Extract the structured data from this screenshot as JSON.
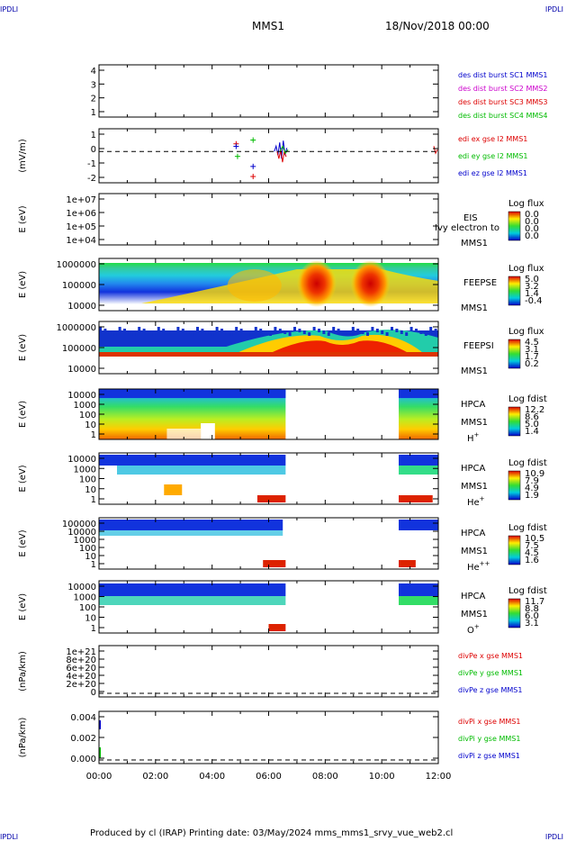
{
  "corner_label": "IPDLI",
  "header": {
    "title": "MMS1",
    "date": "18/Nov/2018 00:00"
  },
  "footer": {
    "text": "Produced by cl (IRAP)   Printing date: 03/May/2024   mms_mms1_srvy_vue_web2.cl"
  },
  "colors": {
    "red": "#dd0000",
    "magenta": "#cc00cc",
    "green": "#00bb00",
    "blue": "#0000cc"
  },
  "chart_data": {
    "type": "spectrogram-stack",
    "x_ticks": [
      "00:00",
      "02:00",
      "04:00",
      "06:00",
      "08:00",
      "10:00",
      "12:00"
    ],
    "x_range_hours": [
      0,
      12
    ],
    "panels": [
      {
        "id": "dist",
        "type": "line",
        "ylabel": "",
        "yticks": [
          "4",
          "3",
          "2",
          "1"
        ],
        "legend": [
          {
            "text": "des dist burst SC1 MMS1",
            "color": "#0000cc"
          },
          {
            "text": "des dist burst SC2 MMS2",
            "color": "#cc00cc"
          },
          {
            "text": "des dist burst SC3 MMS3",
            "color": "#dd0000"
          },
          {
            "text": "des dist burst SC4 MMS4",
            "color": "#00bb00"
          }
        ]
      },
      {
        "id": "edi",
        "type": "line",
        "ylabel": "(mV/m)",
        "yticks": [
          "1",
          "0",
          "-1",
          "-2"
        ],
        "legend": [
          {
            "text": "edi ex gse l2 MMS1",
            "color": "#dd0000"
          },
          {
            "text": "edi ey gse l2 MMS1",
            "color": "#00bb00"
          },
          {
            "text": "edi ez gse l2 MMS1",
            "color": "#0000cc"
          }
        ],
        "points": [
          {
            "t": 4.85,
            "v": 0.5,
            "c": "#dd0000"
          },
          {
            "t": 4.85,
            "v": 0.3,
            "c": "#0000cc"
          },
          {
            "t": 4.9,
            "v": -0.5,
            "c": "#00bb00"
          },
          {
            "t": 5.45,
            "v": 0.8,
            "c": "#00bb00"
          },
          {
            "t": 5.45,
            "v": -1.3,
            "c": "#0000cc"
          },
          {
            "t": 5.45,
            "v": -2.1,
            "c": "#dd0000"
          }
        ]
      },
      {
        "id": "eis",
        "type": "spectrogram",
        "ylabel": "E (eV)",
        "yticks": [
          "1e+07",
          "1e+06",
          "1e+05",
          "1e+04"
        ],
        "name": [
          "EIS",
          "MMS1"
        ],
        "overlay_note": "Ivy electron to",
        "cb_title": "Log flux",
        "cb_ticks": [
          "0.0",
          "0.0",
          "0.0",
          "0.0"
        ]
      },
      {
        "id": "feepse",
        "type": "spectrogram",
        "ylabel": "E (eV)",
        "yticks": [
          "1000000",
          "100000",
          "10000"
        ],
        "name": [
          "FEEPSE",
          "MMS1"
        ],
        "cb_title": "Log flux",
        "cb_ticks": [
          "5.0",
          "3.2",
          "1.4",
          "-0.4"
        ]
      },
      {
        "id": "feepsi",
        "type": "spectrogram",
        "ylabel": "E (eV)",
        "yticks": [
          "1000000",
          "100000",
          "10000"
        ],
        "name": [
          "FEEPSI",
          "MMS1"
        ],
        "cb_title": "Log flux",
        "cb_ticks": [
          "4.5",
          "3.1",
          "1.7",
          "0.2"
        ]
      },
      {
        "id": "hpca_h",
        "type": "spectrogram",
        "ylabel": "E (eV)",
        "yticks": [
          "10000",
          "1000",
          "100",
          "10",
          "1"
        ],
        "name": [
          "HPCA",
          "MMS1"
        ],
        "species": "H",
        "sup": "+",
        "cb_title": "Log fdist",
        "cb_ticks": [
          "12.2",
          "8.6",
          "5.0",
          "1.4"
        ]
      },
      {
        "id": "hpca_he",
        "type": "spectrogram",
        "ylabel": "E (eV)",
        "yticks": [
          "10000",
          "1000",
          "100",
          "10",
          "1"
        ],
        "name": [
          "HPCA",
          "MMS1"
        ],
        "species": "He",
        "sup": "+",
        "cb_title": "Log fdist",
        "cb_ticks": [
          "10.9",
          "7.9",
          "4.9",
          "1.9"
        ]
      },
      {
        "id": "hpca_hepp",
        "type": "spectrogram",
        "ylabel": "E (eV)",
        "yticks": [
          "100000",
          "10000",
          "1000",
          "100",
          "10",
          "1"
        ],
        "name": [
          "HPCA",
          "MMS1"
        ],
        "species": "He",
        "sup": "++",
        "cb_title": "Log fdist",
        "cb_ticks": [
          "10.5",
          "7.5",
          "4.5",
          "1.6"
        ]
      },
      {
        "id": "hpca_o",
        "type": "spectrogram",
        "ylabel": "E (eV)",
        "yticks": [
          "10000",
          "1000",
          "100",
          "10",
          "1"
        ],
        "name": [
          "HPCA",
          "MMS1"
        ],
        "species": "O",
        "sup": "+",
        "cb_title": "Log fdist",
        "cb_ticks": [
          "11.7",
          "8.8",
          "6.0",
          "3.1"
        ]
      },
      {
        "id": "divpe",
        "type": "line",
        "ylabel": "(nPa/km)",
        "yticks": [
          "1e+21",
          "8e+20",
          "6e+20",
          "4e+20",
          "2e+20",
          "0"
        ],
        "legend": [
          {
            "text": "divPe x gse MMS1",
            "color": "#dd0000"
          },
          {
            "text": "divPe y gse MMS1",
            "color": "#00bb00"
          },
          {
            "text": "divPe z gse MMS1",
            "color": "#0000cc"
          }
        ]
      },
      {
        "id": "divpi",
        "type": "line",
        "ylabel": "(nPa/km)",
        "yticks": [
          "0.004",
          "0.002",
          "0.000"
        ],
        "legend": [
          {
            "text": "divPi x gse MMS1",
            "color": "#dd0000"
          },
          {
            "text": "divPi y gse MMS1",
            "color": "#00bb00"
          },
          {
            "text": "divPi z gse MMS1",
            "color": "#0000cc"
          }
        ]
      }
    ]
  }
}
